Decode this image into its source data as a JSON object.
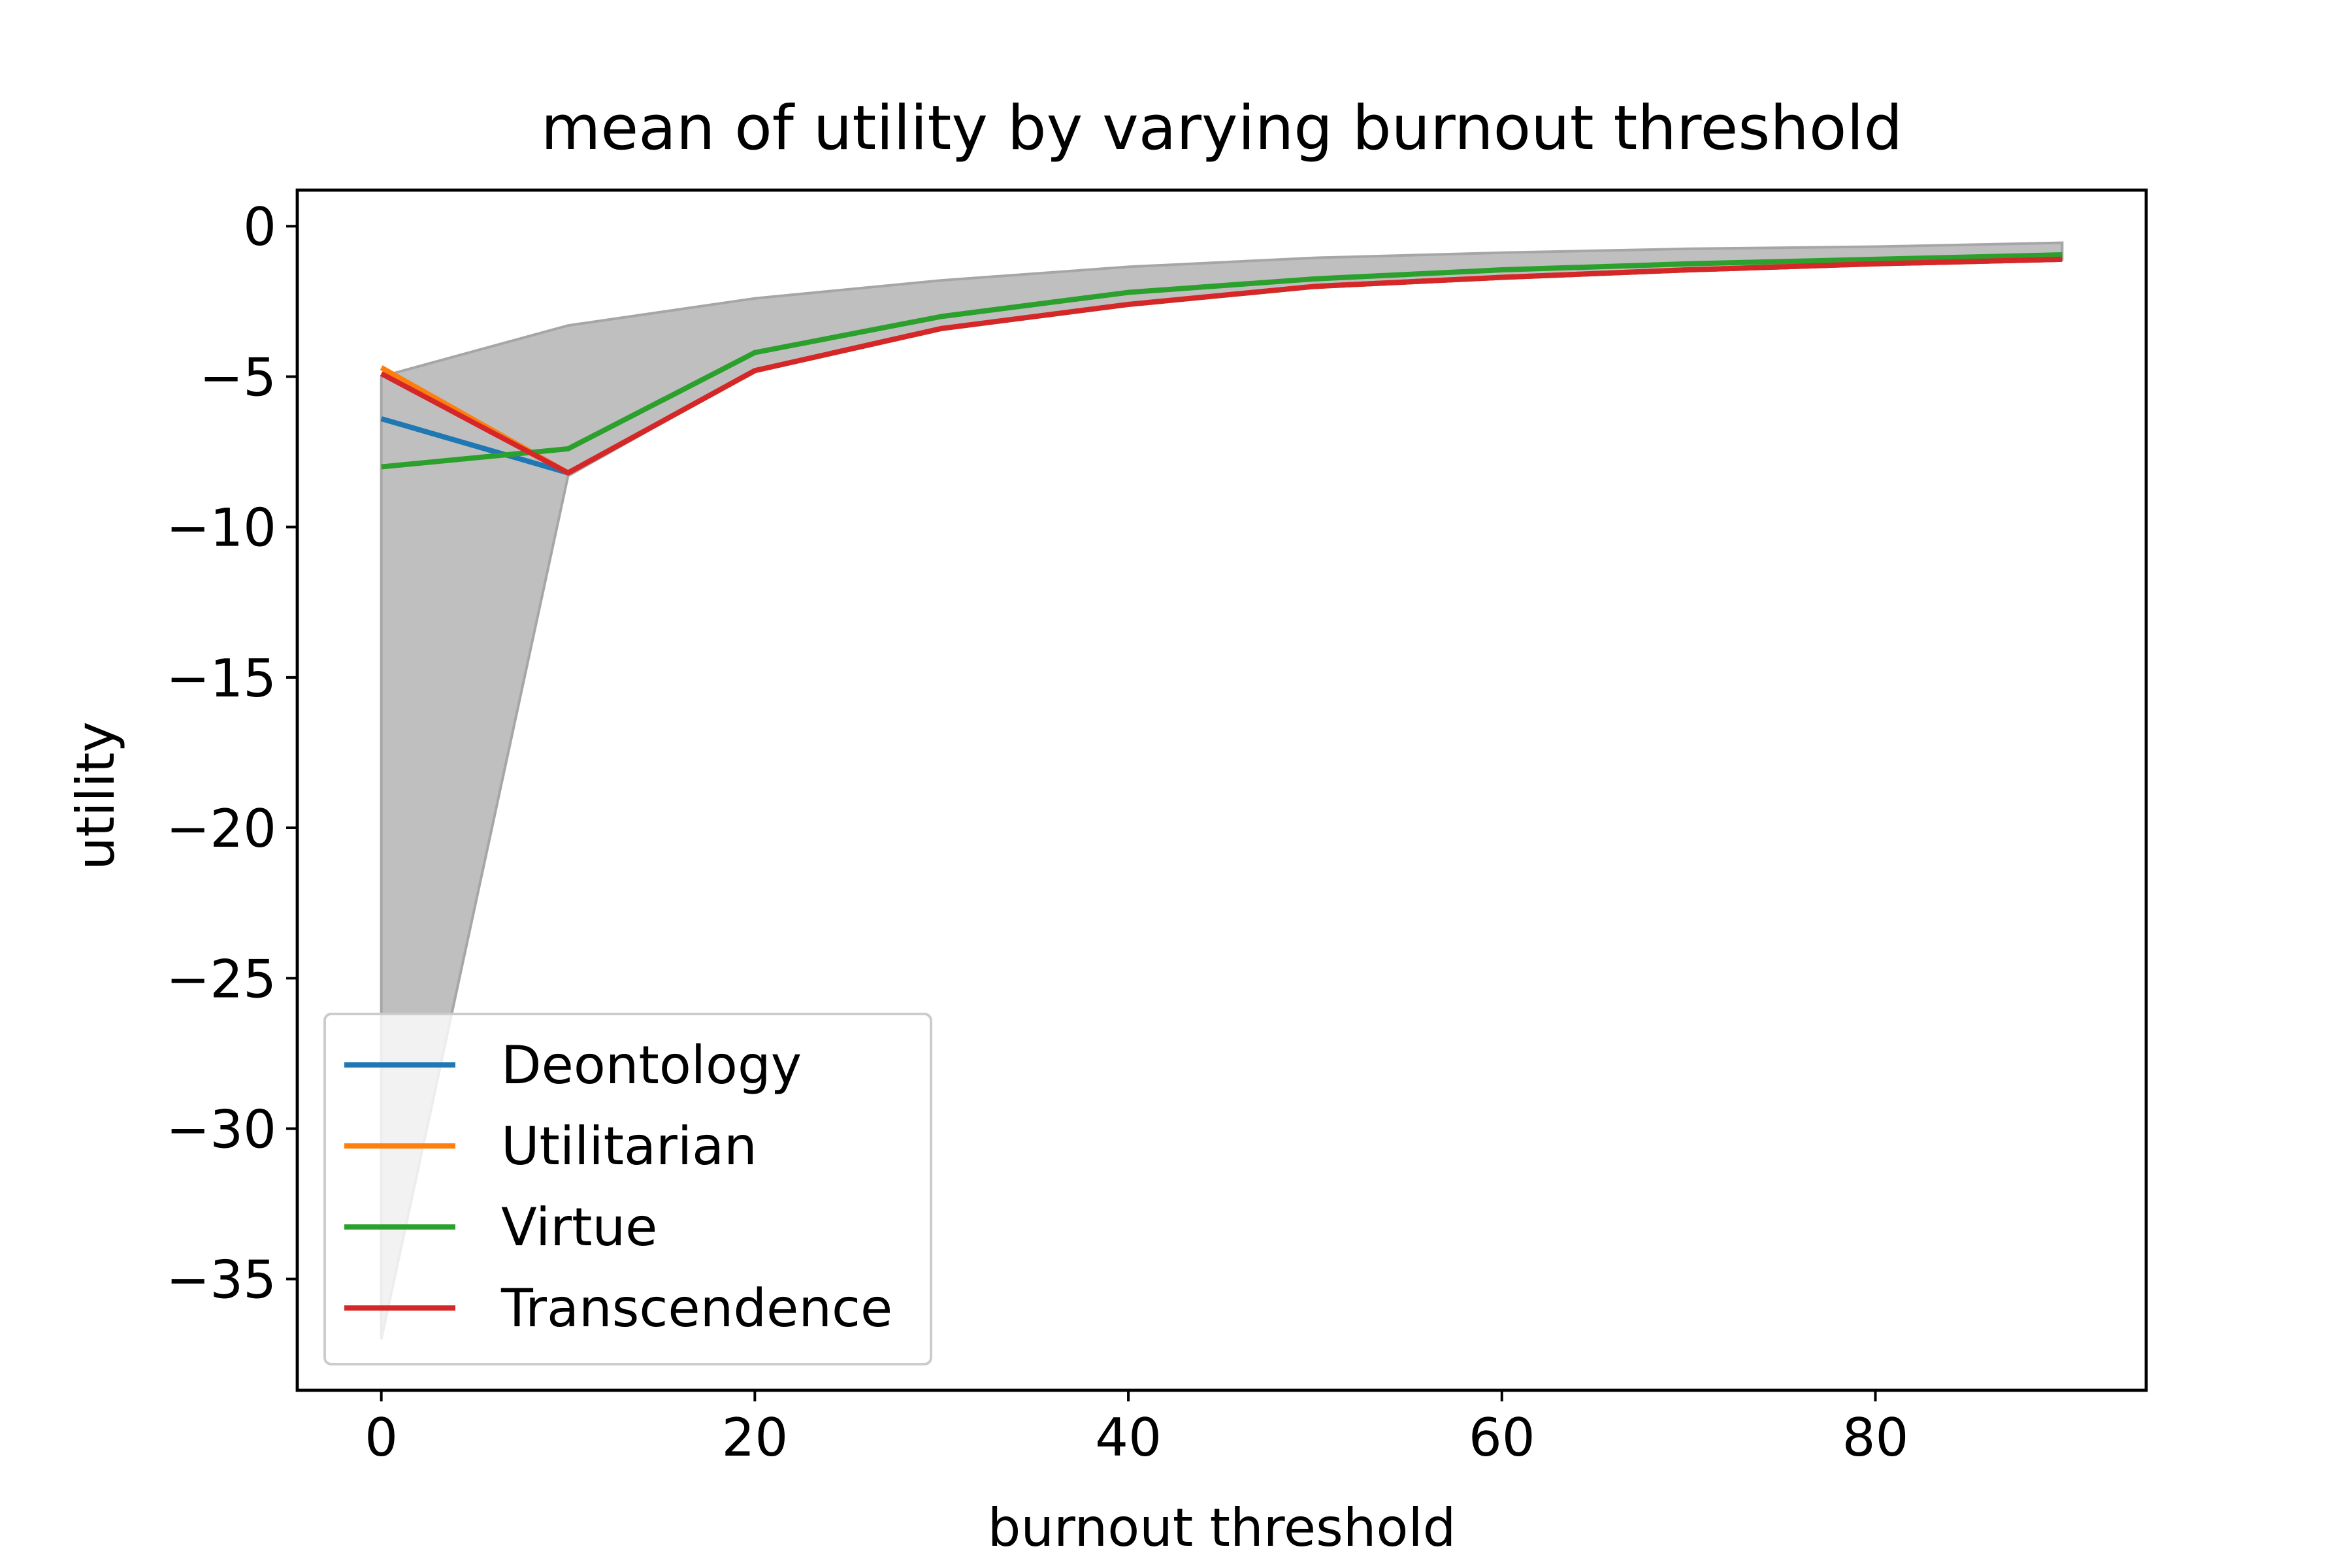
{
  "chart_data": {
    "type": "line",
    "title": "mean of utility by varying burnout threshold",
    "xlabel": "burnout threshold",
    "ylabel": "utility",
    "xlim": [
      -4.5,
      94.5
    ],
    "ylim": [
      -38.7,
      1.2
    ],
    "xticks": [
      0,
      20,
      40,
      60,
      80
    ],
    "xtick_labels": [
      "0",
      "20",
      "40",
      "60",
      "80"
    ],
    "yticks": [
      0,
      -5,
      -10,
      -15,
      -20,
      -25,
      -30,
      -35
    ],
    "ytick_labels": [
      "0",
      "−5",
      "−10",
      "−15",
      "−20",
      "−25",
      "−30",
      "−35"
    ],
    "grid": false,
    "legend_position": "lower-left",
    "x": [
      0,
      10,
      20,
      30,
      40,
      50,
      60,
      70,
      80,
      90
    ],
    "band": {
      "color": "#bfbfbf",
      "edge_color": "#a6a6a6",
      "lower": [
        -37,
        -8.3,
        -4.8,
        -3.4,
        -2.6,
        -2.0,
        -1.7,
        -1.4,
        -1.25,
        -1.1
      ],
      "upper": [
        -5.0,
        -3.3,
        -2.4,
        -1.8,
        -1.35,
        -1.05,
        -0.88,
        -0.75,
        -0.68,
        -0.55
      ]
    },
    "series": [
      {
        "name": "Deontology",
        "color": "#1f77b4",
        "values": [
          -6.4,
          -8.2,
          -4.8,
          -3.4,
          -2.6,
          -2.0,
          -1.7,
          -1.45,
          -1.25,
          -1.1
        ]
      },
      {
        "name": "Utilitarian",
        "color": "#ff7f0e",
        "values": [
          -4.7,
          -8.2,
          -4.8,
          -3.4,
          -2.6,
          -2.0,
          -1.7,
          -1.45,
          -1.25,
          -1.1
        ]
      },
      {
        "name": "Virtue",
        "color": "#2ca02c",
        "values": [
          -8.0,
          -7.4,
          -4.2,
          -3.0,
          -2.2,
          -1.75,
          -1.45,
          -1.25,
          -1.1,
          -0.95
        ]
      },
      {
        "name": "Transcendence",
        "color": "#d62728",
        "values": [
          -4.9,
          -8.2,
          -4.8,
          -3.4,
          -2.6,
          -2.0,
          -1.7,
          -1.45,
          -1.25,
          -1.1
        ]
      }
    ]
  }
}
